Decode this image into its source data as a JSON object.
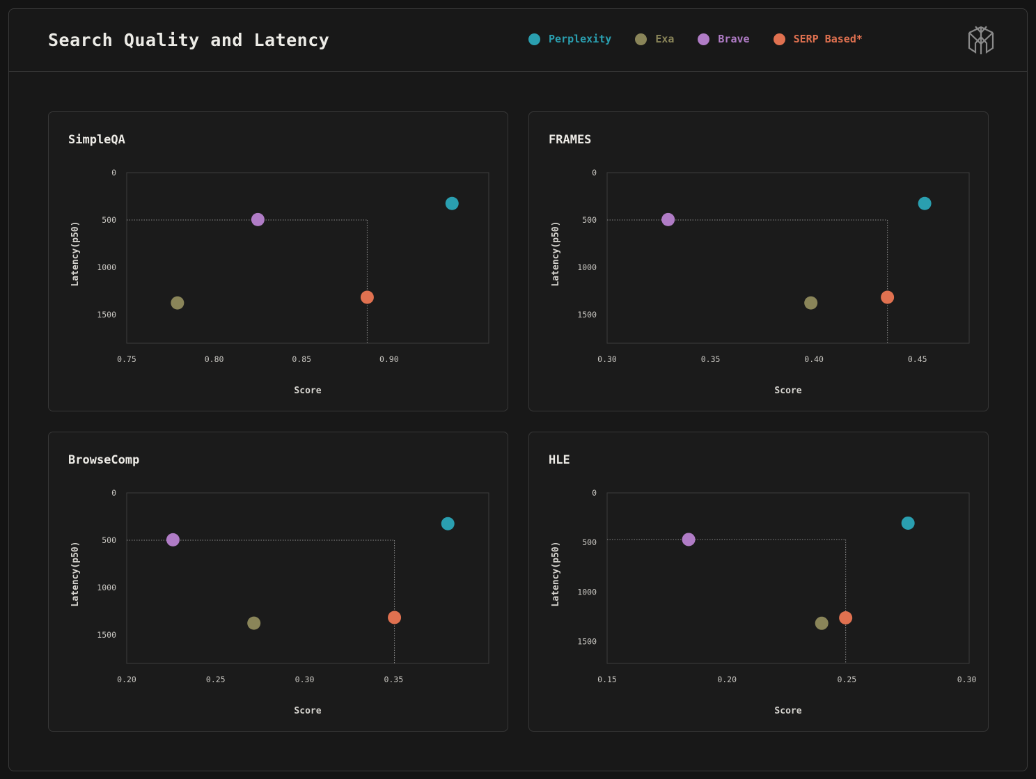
{
  "title": "Search Quality and Latency",
  "legend": [
    {
      "name": "Perplexity",
      "color": "#2a9fb0"
    },
    {
      "name": "Exa",
      "color": "#8a8559"
    },
    {
      "name": "Brave",
      "color": "#b07cc6"
    },
    {
      "name": "SERP Based*",
      "color": "#e07150"
    }
  ],
  "logo_icon": "perplexity-logo-icon",
  "chart_data": [
    {
      "type": "scatter",
      "title": "SimpleQA",
      "xlabel": "Score",
      "ylabel": "Latency(p50)",
      "xlim": [
        0.75,
        0.957
      ],
      "ylim": [
        0,
        1800
      ],
      "y_inverted": true,
      "xticks": [
        "0.75",
        "0.80",
        "0.85",
        "0.90"
      ],
      "yticks": [
        "0",
        "500",
        "1000",
        "1500"
      ],
      "grid": false,
      "reference_point": {
        "series": "SERP Based*",
        "x": 0.8875,
        "y": 500
      },
      "series": [
        {
          "name": "Perplexity",
          "x": 0.936,
          "y": 325
        },
        {
          "name": "Exa",
          "x": 0.779,
          "y": 1375
        },
        {
          "name": "Brave",
          "x": 0.825,
          "y": 495
        },
        {
          "name": "SERP Based*",
          "x": 0.8875,
          "y": 1315
        }
      ]
    },
    {
      "type": "scatter",
      "title": "FRAMES",
      "xlabel": "Score",
      "ylabel": "Latency(p50)",
      "xlim": [
        0.3,
        0.475
      ],
      "ylim": [
        0,
        1800
      ],
      "y_inverted": true,
      "xticks": [
        "0.30",
        "0.35",
        "0.40",
        "0.45"
      ],
      "yticks": [
        "0",
        "500",
        "1000",
        "1500"
      ],
      "grid": false,
      "reference_point": {
        "series": "SERP Based*",
        "x": 0.4355,
        "y": 500
      },
      "series": [
        {
          "name": "Perplexity",
          "x": 0.4535,
          "y": 325
        },
        {
          "name": "Exa",
          "x": 0.3985,
          "y": 1375
        },
        {
          "name": "Brave",
          "x": 0.3295,
          "y": 495
        },
        {
          "name": "SERP Based*",
          "x": 0.4355,
          "y": 1315
        }
      ]
    },
    {
      "type": "scatter",
      "title": "BrowseComp",
      "xlabel": "Score",
      "ylabel": "Latency(p50)",
      "xlim": [
        0.2,
        0.4035
      ],
      "ylim": [
        0,
        1800
      ],
      "y_inverted": true,
      "xticks": [
        "0.20",
        "0.25",
        "0.30",
        "0.35"
      ],
      "yticks": [
        "0",
        "500",
        "1000",
        "1500"
      ],
      "grid": false,
      "reference_point": {
        "series": "SERP Based*",
        "x": 0.3505,
        "y": 500
      },
      "series": [
        {
          "name": "Perplexity",
          "x": 0.3805,
          "y": 325
        },
        {
          "name": "Exa",
          "x": 0.2715,
          "y": 1375
        },
        {
          "name": "Brave",
          "x": 0.226,
          "y": 495
        },
        {
          "name": "SERP Based*",
          "x": 0.3505,
          "y": 1315
        }
      ]
    },
    {
      "type": "scatter",
      "title": "HLE",
      "xlabel": "Score",
      "ylabel": "Latency(p50)",
      "xlim": [
        0.15,
        0.301
      ],
      "ylim": [
        0,
        1720
      ],
      "y_inverted": true,
      "xticks": [
        "0.15",
        "0.20",
        "0.25",
        "0.30"
      ],
      "yticks": [
        "0",
        "500",
        "1000",
        "1500"
      ],
      "grid": false,
      "reference_point": {
        "series": "SERP Based*",
        "x": 0.2495,
        "y": 470
      },
      "series": [
        {
          "name": "Perplexity",
          "x": 0.2755,
          "y": 305
        },
        {
          "name": "Exa",
          "x": 0.2395,
          "y": 1315
        },
        {
          "name": "Brave",
          "x": 0.184,
          "y": 470
        },
        {
          "name": "SERP Based*",
          "x": 0.2495,
          "y": 1260
        }
      ]
    }
  ]
}
